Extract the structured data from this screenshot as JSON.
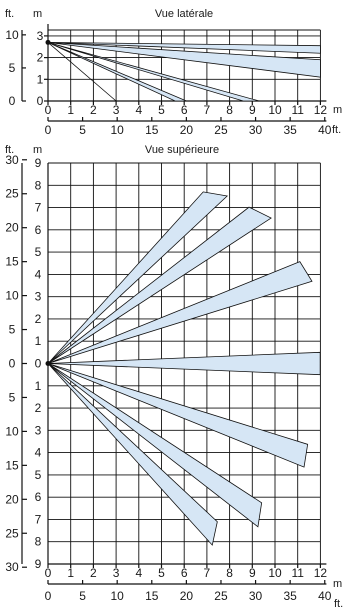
{
  "side_view": {
    "title": "Vue latérale",
    "unit_ft": "ft.",
    "unit_m": "m",
    "y_ft_ticks": [
      "10",
      "5",
      "0"
    ],
    "y_m_ticks": [
      "3",
      "2",
      "1",
      "0"
    ],
    "x_m_ticks": [
      "0",
      "1",
      "2",
      "3",
      "4",
      "5",
      "6",
      "7",
      "8",
      "9",
      "10",
      "11",
      "12"
    ],
    "x_ft_ticks": [
      "0",
      "5",
      "10",
      "15",
      "20",
      "25",
      "30",
      "35",
      "40"
    ],
    "x_m_label": "m",
    "x_ft_label": "ft.",
    "mount_height_m": 2.7,
    "beams_m": [
      {
        "near": 3.0,
        "far": 3.0
      },
      {
        "near": 5.6,
        "far": 6.1
      },
      {
        "near": 8.6,
        "far": 9.3
      },
      {
        "near": 12.0,
        "far": 12.0,
        "h_near": 1.1,
        "h_far": 1.9
      },
      {
        "near": 12.0,
        "far": 12.0,
        "h_near": 2.2,
        "h_far": 2.55
      }
    ],
    "beam_fill": "#d6e6f5"
  },
  "top_view": {
    "title": "Vue supérieure",
    "unit_ft": "ft.",
    "unit_m": "m",
    "y_ft_ticks": [
      "30",
      "25",
      "20",
      "15",
      "10",
      "5",
      "0",
      "5",
      "10",
      "15",
      "20",
      "25",
      "30"
    ],
    "y_m_ticks": [
      "9",
      "8",
      "7",
      "6",
      "5",
      "4",
      "3",
      "2",
      "1",
      "0",
      "1",
      "2",
      "3",
      "4",
      "5",
      "6",
      "7",
      "8",
      "9"
    ],
    "x_m_ticks": [
      "0",
      "1",
      "2",
      "3",
      "4",
      "5",
      "6",
      "7",
      "8",
      "9",
      "10",
      "11",
      "12"
    ],
    "x_ft_ticks": [
      "0",
      "5",
      "10",
      "15",
      "20",
      "25",
      "30",
      "35",
      "40"
    ],
    "x_m_label": "m",
    "x_ft_label": "ft.",
    "beams_m": [
      {
        "angle_deg": 46,
        "near": 10.3,
        "far": 10.9
      },
      {
        "angle_deg": 36,
        "near": 11.3,
        "far": 11.8
      },
      {
        "angle_deg": 20,
        "near": 12.0,
        "far": 12.2
      },
      {
        "angle_deg": 0,
        "near": 12.0,
        "far": 12.0
      },
      {
        "angle_deg": -20,
        "near": 12.0,
        "far": 12.2
      },
      {
        "angle_deg": -36,
        "near": 11.3,
        "far": 11.8
      },
      {
        "angle_deg": -46,
        "near": 10.3,
        "far": 10.9
      }
    ],
    "beam_fill": "#d6e6f5"
  }
}
